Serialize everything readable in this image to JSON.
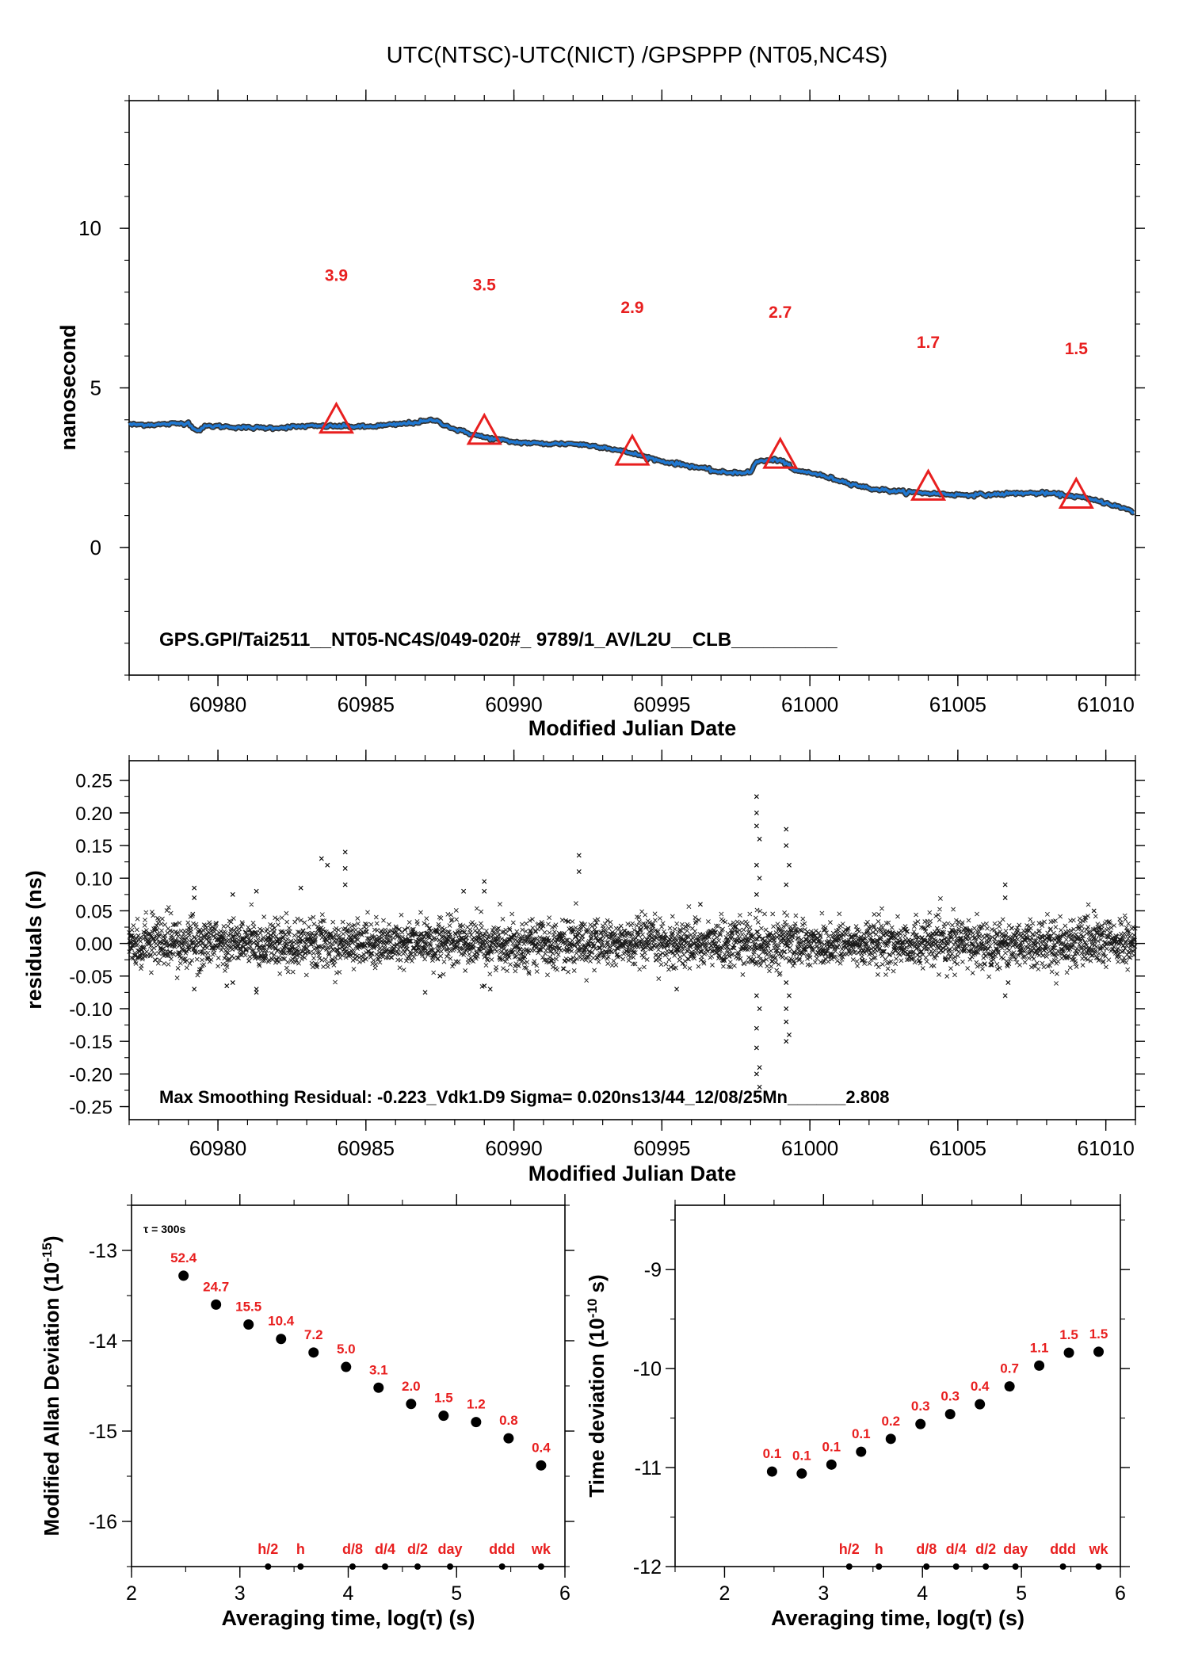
{
  "page_title": "UTC(NTSC)-UTC(NICT)  /GPSPPP  (NT05,NC4S)",
  "chart_data": [
    {
      "id": "top",
      "type": "line",
      "xlabel": "Modified Julian Date",
      "ylabel": "nanosecond",
      "xlim": [
        60977,
        61011
      ],
      "ylim": [
        -4,
        14
      ],
      "xticks": [
        60980,
        60985,
        60990,
        60995,
        61000,
        61005,
        61010
      ],
      "yticks": [
        0,
        5,
        10
      ],
      "series": [
        {
          "color": "#1f77d0",
          "x": [
            60977,
            60978,
            60979,
            60979.3,
            60979.6,
            60980,
            60981,
            60982,
            60983,
            60984,
            60985,
            60986,
            60987,
            60987.3,
            60988,
            60989,
            60990,
            60991,
            60992,
            60993,
            60994,
            60995,
            60996,
            60997,
            60998,
            60998.2,
            60999,
            60999.5,
            61000,
            61001,
            61002,
            61003,
            61004,
            61005,
            61006,
            61007,
            61008,
            61009,
            61010,
            61011
          ],
          "y": [
            3.85,
            3.85,
            3.9,
            3.65,
            3.8,
            3.8,
            3.75,
            3.75,
            3.8,
            3.8,
            3.78,
            3.85,
            3.95,
            4.0,
            3.7,
            3.45,
            3.3,
            3.25,
            3.25,
            3.15,
            2.95,
            2.7,
            2.55,
            2.35,
            2.35,
            2.7,
            2.75,
            2.4,
            2.35,
            2.1,
            1.85,
            1.75,
            1.7,
            1.65,
            1.65,
            1.7,
            1.7,
            1.6,
            1.4,
            1.1
          ]
        }
      ],
      "markers": [
        {
          "x": 60984,
          "y": 3.95,
          "label": "3.9",
          "label_y": 8.55
        },
        {
          "x": 60989,
          "y": 3.6,
          "label": "3.5",
          "label_y": 8.25
        },
        {
          "x": 60994,
          "y": 2.95,
          "label": "2.9",
          "label_y": 7.55
        },
        {
          "x": 60999,
          "y": 2.85,
          "label": "2.7",
          "label_y": 7.4
        },
        {
          "x": 61004,
          "y": 1.85,
          "label": "1.7",
          "label_y": 6.45
        },
        {
          "x": 61009,
          "y": 1.6,
          "label": "1.5",
          "label_y": 6.25
        }
      ],
      "annotation": "GPS.GPI/Tai2511__NT05-NC4S/049-020#_  9789/1_AV/L2U__CLB__________",
      "marker_color": "#e81f1f"
    },
    {
      "id": "residuals",
      "type": "scatter",
      "xlabel": "Modified Julian Date",
      "ylabel": "residuals (ns)",
      "xlim": [
        60977,
        61011
      ],
      "ylim": [
        -0.27,
        0.28
      ],
      "xticks": [
        60980,
        60985,
        60990,
        60995,
        61000,
        61005,
        61010
      ],
      "yticks": [
        0.25,
        0.2,
        0.15,
        0.1,
        0.05,
        0.0,
        -0.05,
        -0.1,
        -0.15,
        -0.2,
        -0.25
      ],
      "ytick_labels": [
        "0.25",
        "0.20",
        "0.15",
        "0.10",
        "0.05",
        "0.00",
        "-0.05",
        "-0.10",
        "-0.15",
        "-0.20",
        "-0.25"
      ],
      "noise_sigma": 0.02,
      "outliers": [
        {
          "x": 60979.2,
          "y": 0.085
        },
        {
          "x": 60979.2,
          "y": 0.07
        },
        {
          "x": 60979.2,
          "y": -0.07
        },
        {
          "x": 60980.5,
          "y": 0.075
        },
        {
          "x": 60980.5,
          "y": -0.06
        },
        {
          "x": 60980.3,
          "y": -0.065
        },
        {
          "x": 60981.3,
          "y": 0.08
        },
        {
          "x": 60981.3,
          "y": -0.07
        },
        {
          "x": 60981.3,
          "y": -0.075
        },
        {
          "x": 60982.8,
          "y": 0.085
        },
        {
          "x": 60983.5,
          "y": 0.13
        },
        {
          "x": 60983.7,
          "y": 0.12
        },
        {
          "x": 60984.3,
          "y": 0.14
        },
        {
          "x": 60984.3,
          "y": 0.115
        },
        {
          "x": 60984.3,
          "y": 0.09
        },
        {
          "x": 60987.0,
          "y": -0.075
        },
        {
          "x": 60987.5,
          "y": -0.05
        },
        {
          "x": 60988.3,
          "y": 0.08
        },
        {
          "x": 60989.0,
          "y": 0.095
        },
        {
          "x": 60989.0,
          "y": 0.08
        },
        {
          "x": 60989.0,
          "y": -0.065
        },
        {
          "x": 60989.2,
          "y": -0.07
        },
        {
          "x": 60992.2,
          "y": 0.135
        },
        {
          "x": 60992.2,
          "y": 0.11
        },
        {
          "x": 60995.5,
          "y": -0.07
        },
        {
          "x": 60996.3,
          "y": 0.06
        },
        {
          "x": 60998.2,
          "y": 0.225
        },
        {
          "x": 60998.2,
          "y": 0.2
        },
        {
          "x": 60998.2,
          "y": 0.18
        },
        {
          "x": 60998.3,
          "y": 0.16
        },
        {
          "x": 60998.2,
          "y": 0.12
        },
        {
          "x": 60998.3,
          "y": 0.1
        },
        {
          "x": 60998.2,
          "y": 0.075
        },
        {
          "x": 60998.2,
          "y": -0.08
        },
        {
          "x": 60998.3,
          "y": -0.1
        },
        {
          "x": 60998.2,
          "y": -0.13
        },
        {
          "x": 60998.2,
          "y": -0.16
        },
        {
          "x": 60998.3,
          "y": -0.19
        },
        {
          "x": 60998.2,
          "y": -0.2
        },
        {
          "x": 60998.3,
          "y": -0.22
        },
        {
          "x": 60999.2,
          "y": 0.175
        },
        {
          "x": 60999.2,
          "y": 0.15
        },
        {
          "x": 60999.3,
          "y": 0.12
        },
        {
          "x": 60999.2,
          "y": 0.09
        },
        {
          "x": 60999.2,
          "y": -0.06
        },
        {
          "x": 60999.3,
          "y": -0.08
        },
        {
          "x": 60999.2,
          "y": -0.1
        },
        {
          "x": 60999.2,
          "y": -0.12
        },
        {
          "x": 60999.3,
          "y": -0.14
        },
        {
          "x": 60999.2,
          "y": -0.15
        },
        {
          "x": 61006.6,
          "y": 0.09
        },
        {
          "x": 61006.6,
          "y": 0.07
        },
        {
          "x": 61006.7,
          "y": -0.06
        },
        {
          "x": 61006.6,
          "y": -0.08
        },
        {
          "x": 61009.6,
          "y": 0.05
        }
      ],
      "annotation": "Max Smoothing Residual: -0.223_Vdk1.D9  Sigma= 0.020ns13/44_12/08/25Mn______2.808"
    },
    {
      "id": "mdev",
      "type": "scatter",
      "xlabel": "Averaging time, log(τ) (s)",
      "ylabel": "Modified Allan Deviation (10",
      "ylabel_sup": "-15",
      "ylabel_end": ")",
      "xlim": [
        2,
        6
      ],
      "ylim": [
        -16.5,
        -12.5
      ],
      "xticks": [
        2,
        3,
        4,
        5,
        6
      ],
      "yticks": [
        -13,
        -14,
        -15,
        -16
      ],
      "note": "τ = 300s",
      "x": [
        2.48,
        2.78,
        3.08,
        3.38,
        3.68,
        3.98,
        4.28,
        4.58,
        4.88,
        5.18,
        5.48,
        5.78
      ],
      "y": [
        -13.28,
        -13.6,
        -13.82,
        -13.98,
        -14.13,
        -14.29,
        -14.52,
        -14.7,
        -14.83,
        -14.9,
        -15.08,
        -15.38
      ],
      "labels": [
        "52.4",
        "24.7",
        "15.5",
        "10.4",
        "7.2",
        "5.0",
        "3.1",
        "2.0",
        "1.5",
        "1.2",
        "0.8",
        "0.4"
      ],
      "period_marks": [
        {
          "x": 3.26,
          "label": "h/2"
        },
        {
          "x": 3.56,
          "label": "h"
        },
        {
          "x": 4.04,
          "label": "d/8"
        },
        {
          "x": 4.34,
          "label": "d/4"
        },
        {
          "x": 4.64,
          "label": "d/2"
        },
        {
          "x": 4.94,
          "label": "day"
        },
        {
          "x": 5.42,
          "label": "ddd"
        },
        {
          "x": 5.78,
          "label": "wk"
        }
      ]
    },
    {
      "id": "tdev",
      "type": "scatter",
      "xlabel": "Averaging time, log(τ) (s)",
      "ylabel": "Time deviation (10",
      "ylabel_sup": "-10",
      "ylabel_end": " s)",
      "xlim": [
        1.5,
        6.0
      ],
      "ylim": [
        -12,
        -8.35
      ],
      "xticks": [
        2,
        3,
        4,
        5,
        6
      ],
      "yticks": [
        -9,
        -10,
        -11,
        -12
      ],
      "x": [
        2.48,
        2.78,
        3.08,
        3.38,
        3.68,
        3.98,
        4.28,
        4.58,
        4.88,
        5.18,
        5.48,
        5.78
      ],
      "y": [
        -11.04,
        -11.06,
        -10.97,
        -10.84,
        -10.71,
        -10.56,
        -10.46,
        -10.36,
        -10.18,
        -9.97,
        -9.84,
        -9.83
      ],
      "labels": [
        "0.1",
        "0.1",
        "0.1",
        "0.1",
        "0.2",
        "0.3",
        "0.3",
        "0.4",
        "0.7",
        "1.1",
        "1.5",
        "1.5"
      ],
      "period_marks": [
        {
          "x": 3.26,
          "label": "h/2"
        },
        {
          "x": 3.56,
          "label": "h"
        },
        {
          "x": 4.04,
          "label": "d/8"
        },
        {
          "x": 4.34,
          "label": "d/4"
        },
        {
          "x": 4.64,
          "label": "d/2"
        },
        {
          "x": 4.94,
          "label": "day"
        },
        {
          "x": 5.42,
          "label": "ddd"
        },
        {
          "x": 5.78,
          "label": "wk"
        }
      ]
    }
  ]
}
